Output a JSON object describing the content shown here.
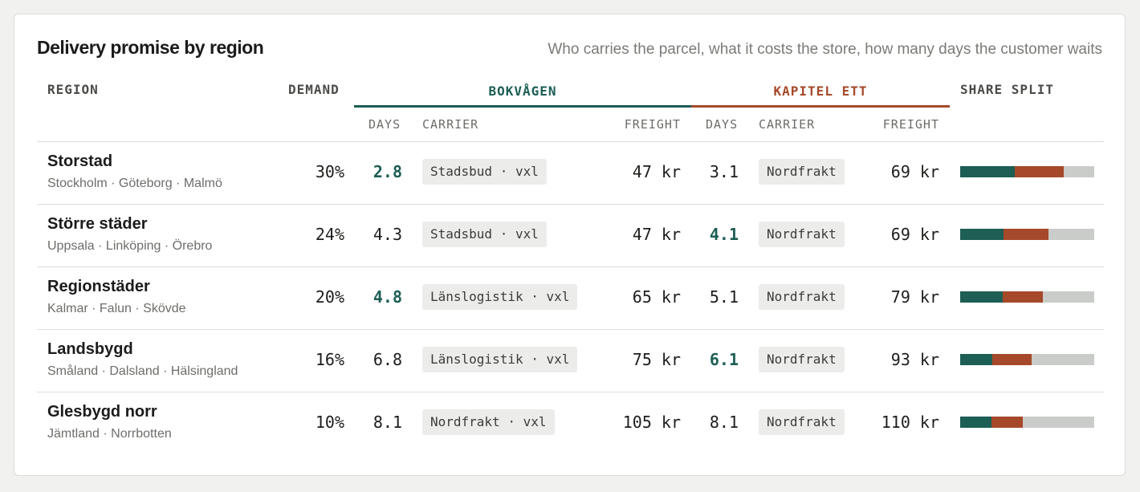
{
  "header": {
    "title": "Delivery promise by region",
    "subtitle": "Who carries the parcel, what it costs the store, how many days the customer waits"
  },
  "columns": {
    "region": "REGION",
    "demand": "DEMAND",
    "store_a": "BOKVÅGEN",
    "store_b": "KAPITEL ETT",
    "share": "SHARE SPLIT",
    "days": "DAYS",
    "carrier": "CARRIER",
    "freight": "FREIGHT"
  },
  "colors": {
    "store_a": "#1d5e55",
    "store_b": "#a6492a",
    "remainder": "#c9ccc9"
  },
  "rows": [
    {
      "name": "Storstad",
      "cities": "Stockholm · Göteborg · Malmö",
      "demand": "30%",
      "a_days": "2.8",
      "a_best": true,
      "a_carrier": "Stadsbud · vxl",
      "a_freight": "47 kr",
      "b_days": "3.1",
      "b_best": false,
      "b_carrier": "Nordfrakt",
      "b_freight": "69 kr",
      "share_a": 0.41,
      "share_b": 0.36
    },
    {
      "name": "Större städer",
      "cities": "Uppsala · Linköping · Örebro",
      "demand": "24%",
      "a_days": "4.3",
      "a_best": false,
      "a_carrier": "Stadsbud · vxl",
      "a_freight": "47 kr",
      "b_days": "4.1",
      "b_best": true,
      "b_carrier": "Nordfrakt",
      "b_freight": "69 kr",
      "share_a": 0.325,
      "share_b": 0.335
    },
    {
      "name": "Regionstäder",
      "cities": "Kalmar · Falun · Skövde",
      "demand": "20%",
      "a_days": "4.8",
      "a_best": true,
      "a_carrier": "Länslogistik · vxl",
      "a_freight": "65 kr",
      "b_days": "5.1",
      "b_best": false,
      "b_carrier": "Nordfrakt",
      "b_freight": "79 kr",
      "share_a": 0.32,
      "share_b": 0.295
    },
    {
      "name": "Landsbygd",
      "cities": "Småland · Dalsland · Hälsingland",
      "demand": "16%",
      "a_days": "6.8",
      "a_best": false,
      "a_carrier": "Länslogistik · vxl",
      "a_freight": "75 kr",
      "b_days": "6.1",
      "b_best": true,
      "b_carrier": "Nordfrakt",
      "b_freight": "93 kr",
      "share_a": 0.24,
      "share_b": 0.29
    },
    {
      "name": "Glesbygd norr",
      "cities": "Jämtland · Norrbotten",
      "demand": "10%",
      "a_days": "8.1",
      "a_best": false,
      "a_carrier": "Nordfrakt · vxl",
      "a_freight": "105 kr",
      "b_days": "8.1",
      "b_best": false,
      "b_carrier": "Nordfrakt",
      "b_freight": "110 kr",
      "share_a": 0.235,
      "share_b": 0.23
    }
  ]
}
